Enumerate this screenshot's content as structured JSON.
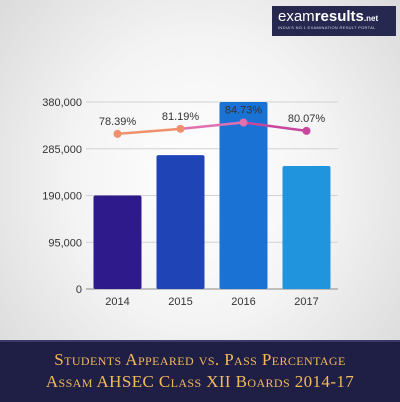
{
  "logo": {
    "part1": "exam",
    "part2": "results",
    "part3": ".net",
    "tagline": "INDIA'S NO.1 EXAMINATION RESULT PORTAL"
  },
  "banner": {
    "line1": "Students Appeared vs. Pass Percentage",
    "line2": "Assam AHSEC Class XII Boards 2014-17"
  },
  "chart_data": {
    "type": "bar",
    "categories": [
      "2014",
      "2015",
      "2016",
      "2017"
    ],
    "series": [
      {
        "type": "bar",
        "values": [
          190000,
          272000,
          380000,
          250000
        ],
        "colors": [
          "#2f1a8c",
          "#1f44b6",
          "#1a72d4",
          "#2094dc"
        ]
      },
      {
        "type": "line",
        "values": [
          78.39,
          81.19,
          84.73,
          80.07
        ],
        "labels": [
          "78.39%",
          "81.19%",
          "84.73%",
          "80.07%"
        ],
        "colors": [
          "#f0906a",
          "#f0906a",
          "#e070b0",
          "#c8489e"
        ],
        "ylim": [
          50,
          100
        ]
      }
    ],
    "ylim": [
      0,
      380000
    ],
    "yticks": [
      0,
      95000,
      190000,
      285000,
      380000
    ],
    "ytick_labels": [
      "0",
      "95,000",
      "190,000",
      "285,000",
      "380,000"
    ],
    "grid": true,
    "title": "",
    "xlabel": "",
    "ylabel": ""
  }
}
